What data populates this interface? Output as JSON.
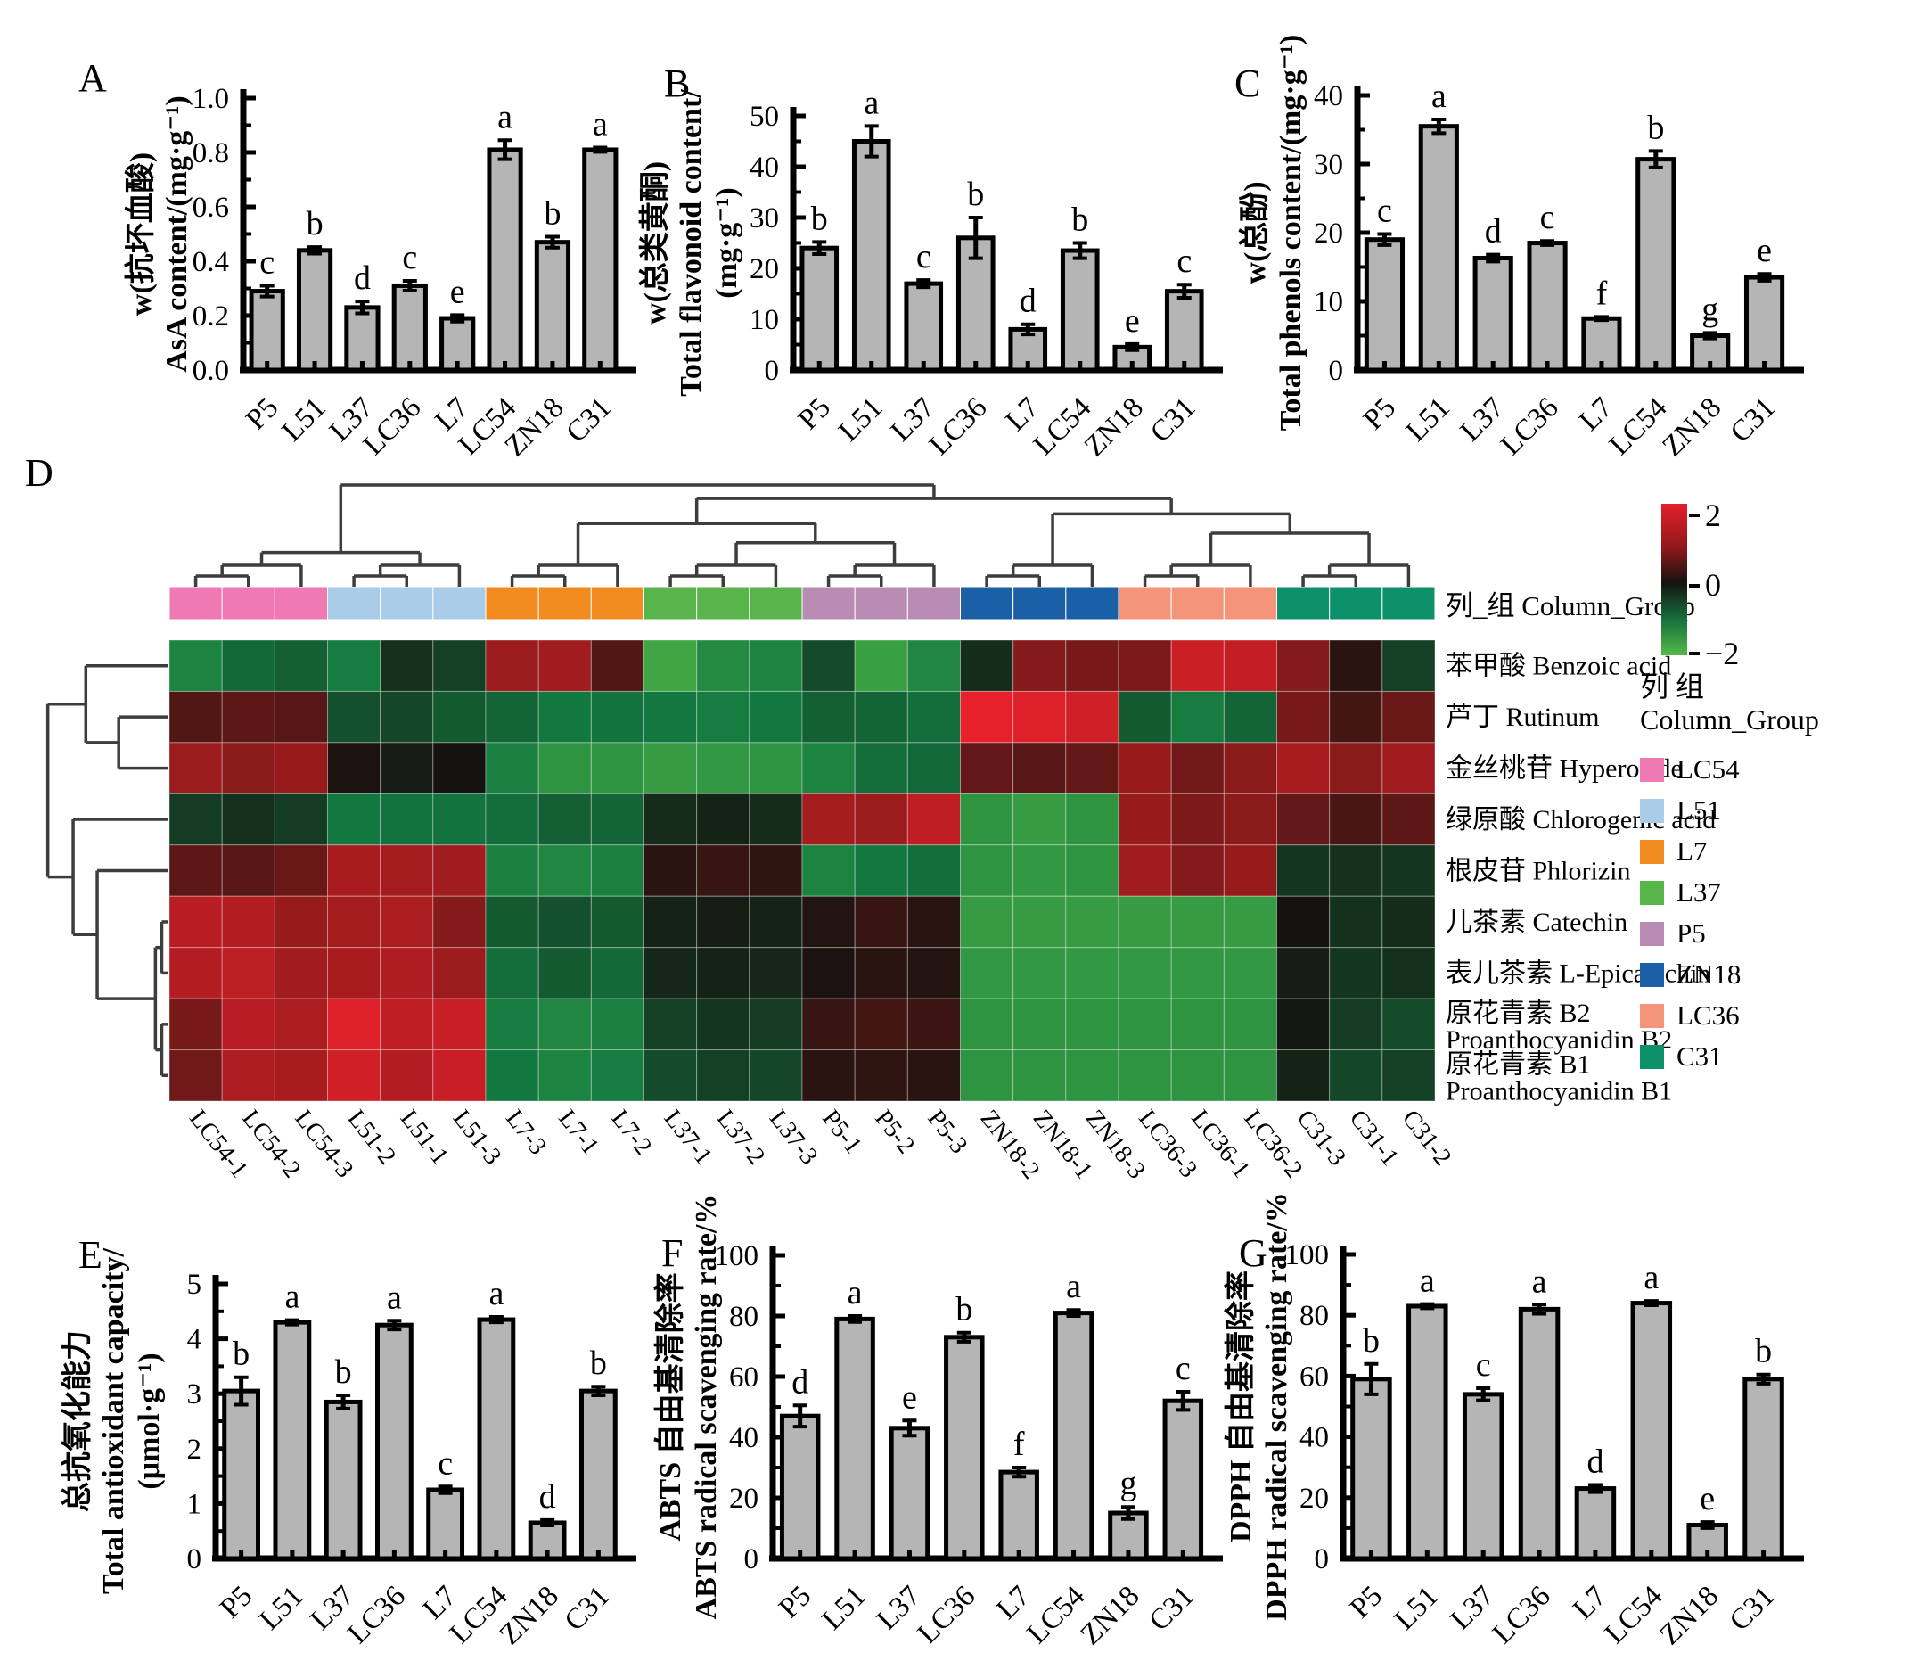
{
  "chart_data": [
    {
      "id": "A",
      "type": "bar",
      "panel_label": "A",
      "ylabel_lines": [
        "w(抗坏血酸)",
        "AsA content/(mg·g⁻¹)"
      ],
      "ylim": [
        0,
        1.0
      ],
      "ytick_values": [
        0,
        0.2,
        0.4,
        0.6,
        0.8,
        1.0
      ],
      "ytick_labels": [
        "0.0",
        "0.2",
        "0.4",
        "0.6",
        "0.8",
        "1.0"
      ],
      "categories": [
        "P5",
        "L51",
        "L37",
        "LC36",
        "L7",
        "LC54",
        "ZN18",
        "C31"
      ],
      "values": [
        0.29,
        0.44,
        0.23,
        0.31,
        0.19,
        0.81,
        0.47,
        0.81
      ],
      "errors": [
        0.02,
        0.012,
        0.022,
        0.018,
        0.012,
        0.035,
        0.02,
        0.008
      ],
      "letters": [
        "c",
        "b",
        "d",
        "c",
        "e",
        "a",
        "b",
        "a"
      ],
      "grid": false,
      "legend_position": "none"
    },
    {
      "id": "B",
      "type": "bar",
      "panel_label": "B",
      "ylabel_lines": [
        "w(总类黄酮)",
        "Total flavonoid content/",
        "(mg·g⁻¹)"
      ],
      "ylim": [
        0,
        50
      ],
      "ytick_values": [
        0,
        10,
        20,
        30,
        40,
        50
      ],
      "ytick_labels": [
        "0",
        "10",
        "20",
        "30",
        "40",
        "50"
      ],
      "categories": [
        "P5",
        "L51",
        "L37",
        "LC36",
        "L7",
        "LC54",
        "ZN18",
        "C31"
      ],
      "values": [
        24,
        45,
        17,
        26,
        8,
        23.5,
        4.5,
        15.5
      ],
      "errors": [
        1.2,
        3,
        0.7,
        4,
        1,
        1.5,
        0.6,
        1.3
      ],
      "letters": [
        "b",
        "a",
        "c",
        "b",
        "d",
        "b",
        "e",
        "c"
      ],
      "grid": false,
      "legend_position": "none"
    },
    {
      "id": "C",
      "type": "bar",
      "panel_label": "C",
      "ylabel_lines": [
        "w(总酚)",
        "Total phenols content/(mg·g⁻¹)"
      ],
      "ylim": [
        0,
        40
      ],
      "ytick_values": [
        0,
        10,
        20,
        30,
        40
      ],
      "ytick_labels": [
        "0",
        "10",
        "20",
        "30",
        "40"
      ],
      "categories": [
        "P5",
        "L51",
        "L37",
        "LC36",
        "L7",
        "LC54",
        "ZN18",
        "C31"
      ],
      "values": [
        19,
        35.5,
        16.3,
        18.5,
        7.5,
        30.7,
        5,
        13.5
      ],
      "errors": [
        0.8,
        1,
        0.5,
        0.3,
        0.25,
        1.2,
        0.4,
        0.5
      ],
      "letters": [
        "c",
        "a",
        "d",
        "c",
        "f",
        "b",
        "g",
        "e"
      ],
      "grid": false,
      "legend_position": "none"
    },
    {
      "id": "D",
      "type": "heatmap",
      "panel_label": "D",
      "strip_label": "列_组 Column_Group",
      "columns": [
        "LC54-1",
        "LC54-2",
        "LC54-3",
        "L51-2",
        "L51-1",
        "L51-3",
        "L7-3",
        "L7-1",
        "L7-2",
        "L37-1",
        "L37-2",
        "L37-3",
        "P5-1",
        "P5-2",
        "P5-3",
        "ZN18-2",
        "ZN18-1",
        "ZN18-3",
        "LC36-3",
        "LC36-1",
        "LC36-2",
        "C31-3",
        "C31-1",
        "C31-2"
      ],
      "column_groups_order": [
        "LC54",
        "L51",
        "L7",
        "L37",
        "P5",
        "ZN18",
        "LC36",
        "C31"
      ],
      "group_colors": {
        "LC54": "#ee79b3",
        "L51": "#a9cce9",
        "L7": "#f28c21",
        "L37": "#57b549",
        "P5": "#b88cb3",
        "ZN18": "#1b5fa6",
        "LC36": "#f4947a",
        "C31": "#0d9168"
      },
      "rows": [
        {
          "lines": [
            "苯甲酸 Benzoic acid"
          ]
        },
        {
          "lines": [
            "芦丁 Rutinum"
          ]
        },
        {
          "lines": [
            "金丝桃苷 Hyperoside"
          ]
        },
        {
          "lines": [
            "绿原酸 Chlorogenic acid"
          ]
        },
        {
          "lines": [
            "根皮苷 Phlorizin"
          ]
        },
        {
          "lines": [
            "儿茶素 Catechin"
          ]
        },
        {
          "lines": [
            "表儿茶素 L-Epicatechin"
          ]
        },
        {
          "lines": [
            "原花青素 B2",
            "Proanthocyanidin B2"
          ]
        },
        {
          "lines": [
            "原花青素 B1",
            "Proanthocyanidin B1"
          ]
        }
      ],
      "value_range": [
        -2,
        2
      ],
      "values": [
        [
          -1.15,
          -0.85,
          -0.75,
          -1.05,
          -0.3,
          -0.45,
          1.05,
          1.1,
          0.45,
          -1.65,
          -1.25,
          -1.15,
          -0.55,
          -1.55,
          -1.2,
          -0.25,
          0.85,
          0.75,
          0.8,
          1.65,
          1.55,
          0.85,
          0.15,
          -0.45
        ],
        [
          0.45,
          0.55,
          0.5,
          -0.6,
          -0.5,
          -0.7,
          -0.8,
          -1.0,
          -0.95,
          -1.0,
          -1.05,
          -1.0,
          -0.75,
          -0.8,
          -0.9,
          2.0,
          1.9,
          1.7,
          -0.7,
          -1.05,
          -0.8,
          0.75,
          0.35,
          0.65
        ],
        [
          1.05,
          0.9,
          1.0,
          0.05,
          -0.1,
          0.0,
          -1.1,
          -1.4,
          -1.4,
          -1.5,
          -1.45,
          -1.4,
          -1.15,
          -0.9,
          -0.85,
          0.6,
          0.5,
          0.6,
          1.0,
          0.7,
          0.9,
          1.2,
          0.9,
          1.1
        ],
        [
          -0.4,
          -0.3,
          -0.4,
          -1.0,
          -0.95,
          -0.95,
          -0.9,
          -0.75,
          -0.8,
          -0.25,
          -0.15,
          -0.25,
          1.15,
          1.05,
          1.5,
          -1.4,
          -1.5,
          -1.4,
          1.0,
          0.8,
          0.9,
          0.6,
          0.4,
          0.55
        ],
        [
          0.55,
          0.5,
          0.65,
          1.2,
          1.15,
          1.1,
          -1.1,
          -1.2,
          -1.1,
          0.15,
          0.25,
          0.2,
          -1.15,
          -1.0,
          -0.9,
          -1.4,
          -1.45,
          -1.4,
          1.1,
          0.85,
          1.0,
          -0.35,
          -0.3,
          -0.35
        ],
        [
          1.4,
          1.35,
          1.0,
          1.15,
          1.25,
          0.85,
          -0.7,
          -0.6,
          -0.7,
          -0.15,
          -0.1,
          -0.15,
          0.1,
          0.25,
          0.15,
          -1.5,
          -1.5,
          -1.5,
          -1.5,
          -1.5,
          -1.5,
          0.0,
          -0.3,
          -0.25
        ],
        [
          1.35,
          1.45,
          1.1,
          1.2,
          1.3,
          1.05,
          -0.9,
          -0.7,
          -0.85,
          -0.2,
          -0.15,
          -0.2,
          0.05,
          0.15,
          0.1,
          -1.45,
          -1.45,
          -1.45,
          -1.45,
          -1.45,
          -1.45,
          -0.1,
          -0.35,
          -0.3
        ],
        [
          0.75,
          1.4,
          1.25,
          1.9,
          1.5,
          1.6,
          -1.05,
          -1.2,
          -1.1,
          -0.45,
          -0.35,
          -0.4,
          0.25,
          0.35,
          0.3,
          -1.4,
          -1.4,
          -1.4,
          -1.4,
          -1.4,
          -1.4,
          -0.05,
          -0.4,
          -0.55
        ],
        [
          0.7,
          1.25,
          1.2,
          1.7,
          1.35,
          1.6,
          -1.0,
          -1.15,
          -1.05,
          -0.55,
          -0.45,
          -0.5,
          0.15,
          0.2,
          0.15,
          -1.4,
          -1.4,
          -1.4,
          -1.4,
          -1.4,
          -1.4,
          -0.15,
          -0.5,
          -0.45
        ]
      ],
      "colorbar": {
        "tick_labels": [
          "2",
          "0",
          "−2"
        ]
      },
      "legend": {
        "title_lines": [
          "列 组",
          "Column_Group"
        ],
        "items": [
          "LC54",
          "L51",
          "L7",
          "L37",
          "P5",
          "ZN18",
          "LC36",
          "C31"
        ]
      },
      "col_dendrogram": {
        "h": 1.0,
        "c": [
          {
            "h": 0.3,
            "c": [
              "LC54",
              "L51"
            ]
          },
          {
            "h": 0.86,
            "c": [
              {
                "h": 0.6,
                "c": [
                  "L7",
                  {
                    "h": 0.4,
                    "c": [
                      "L37",
                      "P5"
                    ]
                  }
                ]
              },
              {
                "h": 0.7,
                "c": [
                  "ZN18",
                  {
                    "h": 0.5,
                    "c": [
                      "LC36",
                      "C31"
                    ]
                  }
                ]
              }
            ]
          }
        ]
      },
      "row_dendrogram": {
        "h": 0.96,
        "c": [
          {
            "h": 0.66,
            "c": [
              0,
              {
                "h": 0.4,
                "c": [
                  1,
                  2
                ]
              }
            ]
          },
          {
            "h": 0.76,
            "c": [
              3,
              {
                "h": 0.57,
                "c": [
                  4,
                  {
                    "h": 0.11,
                    "c": [
                      {
                        "h": 0.06,
                        "c": [
                          5,
                          6
                        ]
                      },
                      {
                        "h": 0.06,
                        "c": [
                          7,
                          8
                        ]
                      }
                    ]
                  }
                ]
              }
            ]
          }
        ]
      }
    },
    {
      "id": "E",
      "type": "bar",
      "panel_label": "E",
      "ylabel_lines": [
        "总抗氧化能力",
        "Total antioxidant capacity/",
        "(μmol·g⁻¹)"
      ],
      "ylim": [
        0,
        5
      ],
      "ytick_values": [
        0,
        1,
        2,
        3,
        4,
        5
      ],
      "ytick_labels": [
        "0",
        "1",
        "2",
        "3",
        "4",
        "5"
      ],
      "categories": [
        "P5",
        "L51",
        "L37",
        "LC36",
        "L7",
        "LC54",
        "ZN18",
        "C31"
      ],
      "values": [
        3.05,
        4.3,
        2.85,
        4.25,
        1.25,
        4.35,
        0.65,
        3.05
      ],
      "errors": [
        0.25,
        0.04,
        0.12,
        0.08,
        0.06,
        0.05,
        0.05,
        0.08
      ],
      "letters": [
        "b",
        "a",
        "b",
        "a",
        "c",
        "a",
        "d",
        "b"
      ],
      "grid": false,
      "legend_position": "none"
    },
    {
      "id": "F",
      "type": "bar",
      "panel_label": "F",
      "ylabel_lines": [
        "ABTS 自由基清除率",
        "ABTS radical scavenging rate/%"
      ],
      "ylim": [
        0,
        100
      ],
      "ytick_values": [
        0,
        20,
        40,
        60,
        80,
        100
      ],
      "ytick_labels": [
        "0",
        "20",
        "40",
        "60",
        "80",
        "100"
      ],
      "categories": [
        "P5",
        "L51",
        "L37",
        "LC36",
        "L7",
        "LC54",
        "ZN18",
        "C31"
      ],
      "values": [
        47,
        79,
        43,
        73,
        28.5,
        81,
        15,
        52
      ],
      "errors": [
        3.5,
        1,
        2.5,
        1.5,
        1.5,
        1,
        2,
        3
      ],
      "letters": [
        "d",
        "a",
        "e",
        "b",
        "f",
        "a",
        "g",
        "c"
      ],
      "grid": false,
      "legend_position": "none"
    },
    {
      "id": "G",
      "type": "bar",
      "panel_label": "G",
      "ylabel_lines": [
        "DPPH 自由基清除率",
        "DPPH radical scavenging rate/%"
      ],
      "ylim": [
        0,
        100
      ],
      "ytick_values": [
        0,
        20,
        40,
        60,
        80,
        100
      ],
      "ytick_labels": [
        "0",
        "20",
        "40",
        "60",
        "80",
        "100"
      ],
      "categories": [
        "P5",
        "L51",
        "L37",
        "LC36",
        "L7",
        "LC54",
        "ZN18",
        "C31"
      ],
      "values": [
        59,
        83,
        54,
        82,
        23,
        84,
        11,
        59
      ],
      "errors": [
        5,
        0.7,
        2,
        1.5,
        1.2,
        0.7,
        1,
        1.5
      ],
      "letters": [
        "b",
        "a",
        "c",
        "a",
        "d",
        "a",
        "e",
        "b"
      ],
      "grid": false,
      "legend_position": "none"
    }
  ]
}
